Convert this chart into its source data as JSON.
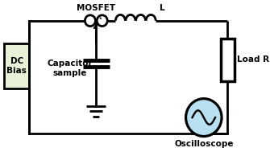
{
  "bg_color": "#ffffff",
  "line_color": "#000000",
  "line_width": 2.0,
  "dc_bias": {
    "label": "DC\nBias",
    "bg": "#e8f2d8",
    "border": "#000000"
  },
  "mosfet_label": "MOSFET",
  "inductor_label": "L",
  "capacitor_label": "Capacitor\nsample",
  "load_label": "Load R",
  "oscilloscope_label": "Oscilloscope",
  "osc_color": "#b8e0f0",
  "font_size": 7.5,
  "font_size_small": 6.5
}
